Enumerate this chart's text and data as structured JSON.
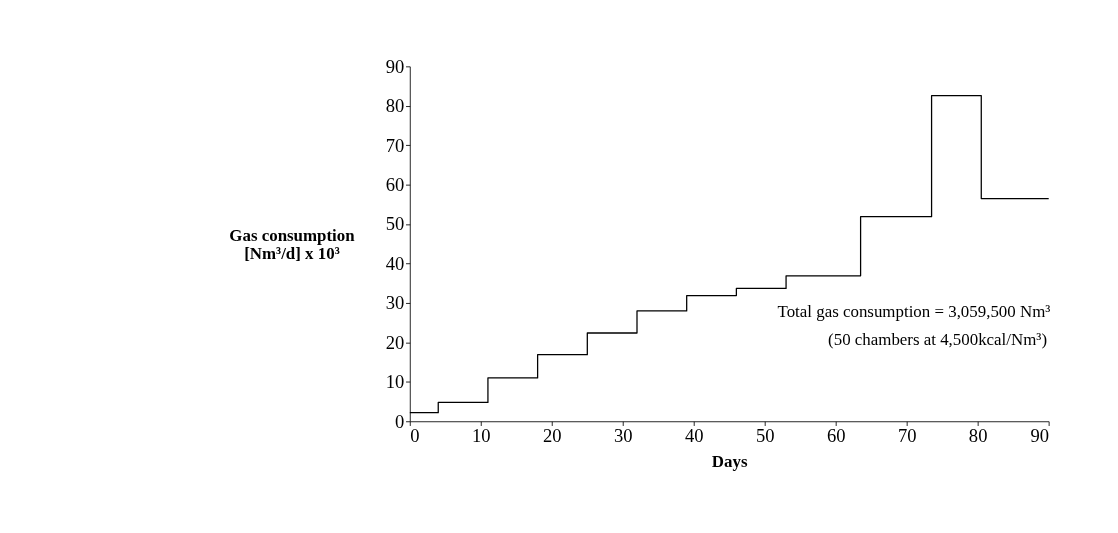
{
  "chart_data": {
    "type": "step",
    "xlabel": "Days",
    "ylabel": "Gas consumption\n[Nm³/d] x 10³",
    "x": [
      0,
      4,
      11,
      18,
      25,
      32,
      39,
      46,
      53,
      63.5,
      73.5,
      80.5,
      90
    ],
    "series": [
      {
        "color": "#000000",
        "values": [
          2.2,
          4.8,
          11,
          16.9,
          22.4,
          28,
          31.9,
          33.7,
          36.9,
          51.9,
          82.6,
          56.5,
          56.5
        ]
      }
    ],
    "xlim": [
      0,
      90
    ],
    "xticks": [
      0,
      10,
      20,
      30,
      40,
      50,
      60,
      70,
      80,
      90
    ],
    "ylim": [
      0,
      90
    ],
    "yticks": [
      0,
      10,
      20,
      30,
      40,
      50,
      60,
      70,
      80,
      90
    ],
    "grid": false,
    "marker": "none",
    "line_style": "solid",
    "annotations": [
      "Total gas consumption = 3,059,500 Nm³",
      "(50 chambers at 4,500kcal/Nm³)"
    ]
  }
}
